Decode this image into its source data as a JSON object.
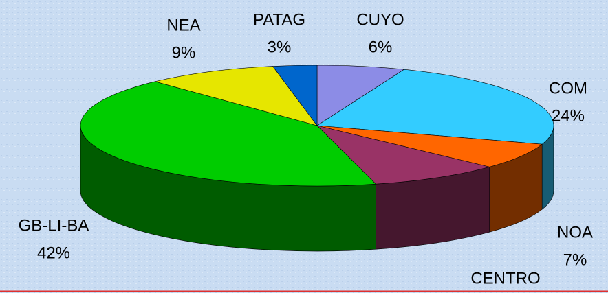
{
  "chart_data": {
    "type": "pie3d",
    "categories": [
      "CUYO",
      "COM",
      "NOA",
      "CENTRO",
      "GB-LI-BA",
      "NEA",
      "PATAG"
    ],
    "values": [
      6,
      24,
      7,
      9,
      42,
      9,
      3
    ],
    "value_labels": [
      "6%",
      "24%",
      "7%",
      null,
      "42%",
      "9%",
      "3%"
    ],
    "colors": [
      "#8c8ce6",
      "#33ccff",
      "#ff6600",
      "#993366",
      "#00cc00",
      "#e6e600",
      "#0066cc"
    ]
  }
}
